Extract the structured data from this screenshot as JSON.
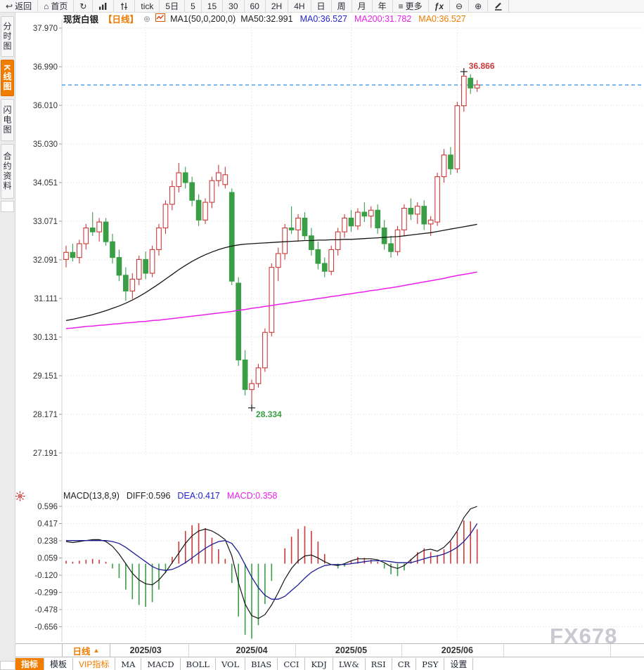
{
  "toolbar": {
    "items": [
      {
        "name": "back-button",
        "icon": "back-arrow-icon",
        "label": "返回"
      },
      {
        "name": "home-button",
        "icon": "home-icon",
        "label": "首页"
      },
      {
        "name": "refresh-button",
        "icon": "refresh-icon",
        "label": ""
      },
      {
        "name": "bar-chart-button",
        "icon": "bar-chart-icon",
        "label": ""
      },
      {
        "name": "indicator-sliders-button",
        "icon": "indicator-sliders-icon",
        "label": ""
      },
      {
        "name": "period-tick",
        "icon": "",
        "label": "tick"
      },
      {
        "name": "period-5d",
        "icon": "",
        "label": "5日"
      },
      {
        "name": "period-5m",
        "icon": "",
        "label": "5"
      },
      {
        "name": "period-15m",
        "icon": "",
        "label": "15"
      },
      {
        "name": "period-30m",
        "icon": "",
        "label": "30"
      },
      {
        "name": "period-60m",
        "icon": "",
        "label": "60"
      },
      {
        "name": "period-2h",
        "icon": "",
        "label": "2H"
      },
      {
        "name": "period-4h",
        "icon": "",
        "label": "4H"
      },
      {
        "name": "period-day",
        "icon": "",
        "label": "日"
      },
      {
        "name": "period-week",
        "icon": "",
        "label": "周"
      },
      {
        "name": "period-month",
        "icon": "",
        "label": "月"
      },
      {
        "name": "period-year",
        "icon": "",
        "label": "年"
      },
      {
        "name": "more-button",
        "icon": "more-icon",
        "label": "更多"
      },
      {
        "name": "fx-button",
        "icon": "fx-icon",
        "label": ""
      },
      {
        "name": "zoom-out-button",
        "icon": "zoom-out-icon",
        "label": ""
      },
      {
        "name": "zoom-in-button",
        "icon": "zoom-in-icon",
        "label": ""
      },
      {
        "name": "draw-button",
        "icon": "pencil-icon",
        "label": ""
      }
    ]
  },
  "sidebar": {
    "tabs": [
      {
        "label": "分时图",
        "active": false
      },
      {
        "label": "K线图",
        "active": true
      },
      {
        "label": "闪电图",
        "active": false
      },
      {
        "label": "合约资料",
        "active": false
      }
    ]
  },
  "title": {
    "instrument": "现货白银",
    "period_tag": "【日线】",
    "add_icon": "⊕",
    "ma_settings": "MA1(50,0,200,0)",
    "ma_values": [
      {
        "label": "MA50:32.991",
        "color": "#222222"
      },
      {
        "label": "MA0:36.527",
        "color": "#2323cc"
      },
      {
        "label": "MA200:31.782",
        "color": "#e822e8"
      },
      {
        "label": "MA0:36.527",
        "color": "#f07c00"
      }
    ]
  },
  "macd_header": {
    "values": [
      {
        "label": "MACD(13,8,9)",
        "color": "#222222"
      },
      {
        "label": "DIFF:0.596",
        "color": "#222222"
      },
      {
        "label": "DEA:0.417",
        "color": "#2323cc"
      },
      {
        "label": "MACD:0.358",
        "color": "#e822e8"
      }
    ]
  },
  "xaxis": {
    "period_label": "日线",
    "arrow": "▲"
  },
  "bottom_tabs": [
    {
      "label": "指标",
      "active": true,
      "accent": false,
      "mono": false
    },
    {
      "label": "模板",
      "active": false,
      "accent": false,
      "mono": false
    },
    {
      "label": "VIP指标",
      "active": false,
      "accent": true,
      "mono": false
    },
    {
      "label": "MA",
      "active": false,
      "accent": false,
      "mono": true
    },
    {
      "label": "MACD",
      "active": false,
      "accent": false,
      "mono": true
    },
    {
      "label": "BOLL",
      "active": false,
      "accent": false,
      "mono": true
    },
    {
      "label": "VOL",
      "active": false,
      "accent": false,
      "mono": true
    },
    {
      "label": "BIAS",
      "active": false,
      "accent": false,
      "mono": true
    },
    {
      "label": "CCI",
      "active": false,
      "accent": false,
      "mono": true
    },
    {
      "label": "KDJ",
      "active": false,
      "accent": false,
      "mono": true
    },
    {
      "label": "LW&",
      "active": false,
      "accent": false,
      "mono": true
    },
    {
      "label": "RSI",
      "active": false,
      "accent": false,
      "mono": true
    },
    {
      "label": "CR",
      "active": false,
      "accent": false,
      "mono": true
    },
    {
      "label": "PSY",
      "active": false,
      "accent": false,
      "mono": true
    },
    {
      "label": "设置",
      "active": false,
      "accent": false,
      "mono": false
    }
  ],
  "watermark": "FX678",
  "chart_data": {
    "type": "candlestick+macd",
    "title": "现货白银 日线",
    "colors": {
      "up": "#cb3a3a",
      "down": "#3a9e46",
      "ma50": "#151515",
      "ma200": "#ea1fea",
      "diff": "#151515",
      "dea": "#1d1d96",
      "price_line": "#2f8fe8",
      "accent": "#f07c00"
    },
    "main": {
      "ylim": [
        26.3,
        38.2
      ],
      "ticks": [
        "37.970",
        "36.990",
        "36.010",
        "35.030",
        "34.051",
        "33.071",
        "32.091",
        "31.111",
        "30.131",
        "29.151",
        "28.171",
        "27.191"
      ],
      "current_price": 36.527,
      "months": [
        {
          "label": "2025/03",
          "index": 12
        },
        {
          "label": "2025/04",
          "index": 28
        },
        {
          "label": "2025/05",
          "index": 43
        },
        {
          "label": "2025/06",
          "index": 59
        }
      ],
      "annotations": {
        "high": {
          "label": "36.866",
          "price": 36.866,
          "index": 60
        },
        "low": {
          "label": "28.334",
          "price": 28.334,
          "index": 28
        }
      },
      "candles": [
        [
          32.1,
          32.45,
          31.9,
          32.28
        ],
        [
          32.28,
          32.5,
          32.05,
          32.15
        ],
        [
          32.15,
          32.6,
          32.0,
          32.5
        ],
        [
          32.5,
          33.0,
          32.35,
          32.9
        ],
        [
          32.9,
          33.3,
          32.7,
          32.8
        ],
        [
          32.8,
          33.15,
          32.55,
          33.05
        ],
        [
          33.05,
          33.15,
          32.45,
          32.55
        ],
        [
          32.55,
          32.75,
          32.0,
          32.15
        ],
        [
          32.15,
          32.35,
          31.55,
          31.7
        ],
        [
          31.7,
          31.9,
          31.05,
          31.3
        ],
        [
          31.3,
          31.75,
          31.1,
          31.6
        ],
        [
          31.6,
          32.2,
          31.45,
          32.1
        ],
        [
          32.1,
          32.3,
          31.6,
          31.75
        ],
        [
          31.75,
          32.45,
          31.65,
          32.35
        ],
        [
          32.35,
          33.0,
          32.2,
          32.9
        ],
        [
          32.9,
          33.6,
          32.75,
          33.5
        ],
        [
          33.5,
          34.1,
          33.35,
          33.95
        ],
        [
          33.95,
          34.55,
          33.8,
          34.3
        ],
        [
          34.3,
          34.45,
          33.9,
          34.05
        ],
        [
          34.05,
          34.2,
          33.45,
          33.6
        ],
        [
          33.6,
          33.75,
          32.95,
          33.1
        ],
        [
          33.1,
          33.65,
          33.0,
          33.55
        ],
        [
          33.55,
          34.2,
          33.4,
          34.1
        ],
        [
          34.1,
          34.5,
          33.95,
          34.3
        ],
        [
          34.0,
          34.45,
          33.9,
          34.25
        ],
        [
          33.8,
          33.9,
          31.45,
          31.55
        ],
        [
          31.5,
          31.65,
          29.4,
          29.55
        ],
        [
          29.55,
          29.8,
          28.65,
          28.8
        ],
        [
          28.8,
          29.05,
          28.334,
          28.95
        ],
        [
          28.95,
          29.45,
          28.85,
          29.35
        ],
        [
          29.35,
          30.35,
          29.25,
          30.25
        ],
        [
          30.25,
          32.0,
          30.15,
          31.9
        ],
        [
          31.9,
          32.4,
          31.55,
          32.25
        ],
        [
          32.25,
          33.0,
          32.1,
          32.9
        ],
        [
          32.9,
          33.45,
          32.75,
          32.85
        ],
        [
          32.85,
          33.25,
          32.55,
          33.15
        ],
        [
          33.15,
          33.3,
          32.6,
          32.7
        ],
        [
          32.7,
          32.9,
          32.2,
          32.35
        ],
        [
          32.35,
          32.55,
          31.85,
          32.0
        ],
        [
          32.0,
          32.15,
          31.65,
          31.8
        ],
        [
          31.8,
          32.45,
          31.7,
          32.35
        ],
        [
          32.35,
          32.9,
          32.2,
          32.8
        ],
        [
          32.8,
          33.25,
          32.65,
          33.15
        ],
        [
          33.15,
          33.35,
          32.8,
          32.95
        ],
        [
          32.95,
          33.4,
          32.85,
          33.3
        ],
        [
          33.3,
          33.55,
          33.05,
          33.2
        ],
        [
          33.2,
          33.45,
          32.9,
          33.35
        ],
        [
          33.35,
          33.5,
          32.75,
          32.9
        ],
        [
          32.9,
          33.1,
          32.35,
          32.5
        ],
        [
          32.5,
          32.7,
          32.15,
          32.3
        ],
        [
          32.3,
          32.95,
          32.2,
          32.85
        ],
        [
          32.85,
          33.5,
          32.7,
          33.4
        ],
        [
          33.4,
          33.65,
          33.1,
          33.25
        ],
        [
          33.25,
          33.55,
          33.0,
          33.45
        ],
        [
          33.45,
          33.6,
          32.85,
          33.0
        ],
        [
          33.0,
          33.2,
          32.7,
          33.1
        ],
        [
          33.05,
          34.3,
          32.95,
          34.2
        ],
        [
          34.2,
          34.9,
          34.05,
          34.75
        ],
        [
          34.75,
          34.95,
          34.25,
          34.4
        ],
        [
          34.4,
          36.1,
          34.3,
          36.0
        ],
        [
          36.0,
          36.866,
          35.85,
          36.75
        ],
        [
          36.7,
          36.8,
          36.3,
          36.45
        ],
        [
          36.45,
          36.65,
          36.35,
          36.527
        ]
      ],
      "ma50": [
        30.55,
        30.58,
        30.62,
        30.66,
        30.7,
        30.75,
        30.8,
        30.86,
        30.92,
        30.99,
        31.07,
        31.16,
        31.26,
        31.37,
        31.48,
        31.6,
        31.72,
        31.84,
        31.95,
        32.05,
        32.14,
        32.22,
        32.29,
        32.35,
        32.4,
        32.44,
        32.47,
        32.49,
        32.5,
        32.51,
        32.52,
        32.53,
        32.54,
        32.55,
        32.56,
        32.57,
        32.58,
        32.58,
        32.59,
        32.59,
        32.6,
        32.6,
        32.61,
        32.61,
        32.62,
        32.63,
        32.64,
        32.65,
        32.66,
        32.67,
        32.68,
        32.7,
        32.72,
        32.74,
        32.76,
        32.78,
        32.81,
        32.84,
        32.87,
        32.9,
        32.93,
        32.96,
        32.991
      ],
      "ma200": [
        30.35,
        30.36,
        30.38,
        30.4,
        30.41,
        30.43,
        30.44,
        30.46,
        30.47,
        30.49,
        30.5,
        30.52,
        30.53,
        30.55,
        30.56,
        30.58,
        30.6,
        30.62,
        30.64,
        30.66,
        30.68,
        30.7,
        30.72,
        30.74,
        30.76,
        30.78,
        30.81,
        30.83,
        30.86,
        30.88,
        30.91,
        30.93,
        30.96,
        30.98,
        31.01,
        31.03,
        31.06,
        31.08,
        31.11,
        31.13,
        31.16,
        31.18,
        31.21,
        31.23,
        31.26,
        31.28,
        31.31,
        31.33,
        31.36,
        31.38,
        31.41,
        31.44,
        31.47,
        31.5,
        31.53,
        31.56,
        31.59,
        31.62,
        31.66,
        31.69,
        31.72,
        31.75,
        31.782
      ]
    },
    "macd": {
      "ylim": [
        -0.8,
        0.66
      ],
      "ticks": [
        "0.596",
        "0.417",
        "0.238",
        "0.059",
        "-0.120",
        "-0.299",
        "-0.478",
        "-0.656"
      ],
      "diff": [
        0.23,
        0.22,
        0.23,
        0.24,
        0.25,
        0.25,
        0.23,
        0.18,
        0.1,
        0.0,
        -0.1,
        -0.17,
        -0.21,
        -0.22,
        -0.17,
        -0.09,
        0.01,
        0.11,
        0.21,
        0.29,
        0.34,
        0.36,
        0.34,
        0.3,
        0.25,
        0.08,
        -0.2,
        -0.42,
        -0.54,
        -0.57,
        -0.53,
        -0.43,
        -0.3,
        -0.16,
        -0.05,
        0.03,
        0.08,
        0.09,
        0.06,
        0.02,
        -0.01,
        -0.02,
        0.0,
        0.03,
        0.05,
        0.05,
        0.05,
        0.04,
        0.01,
        -0.03,
        -0.05,
        -0.02,
        0.04,
        0.1,
        0.14,
        0.15,
        0.13,
        0.17,
        0.24,
        0.34,
        0.48,
        0.57,
        0.596
      ],
      "dea": [
        0.24,
        0.24,
        0.24,
        0.24,
        0.24,
        0.24,
        0.24,
        0.23,
        0.21,
        0.17,
        0.12,
        0.07,
        0.02,
        -0.03,
        -0.06,
        -0.07,
        -0.06,
        -0.03,
        0.01,
        0.06,
        0.11,
        0.16,
        0.2,
        0.23,
        0.24,
        0.21,
        0.12,
        -0.01,
        -0.14,
        -0.25,
        -0.33,
        -0.37,
        -0.37,
        -0.34,
        -0.28,
        -0.22,
        -0.15,
        -0.09,
        -0.05,
        -0.02,
        -0.01,
        -0.01,
        -0.01,
        0.0,
        0.01,
        0.02,
        0.03,
        0.03,
        0.03,
        0.02,
        0.01,
        0.01,
        0.01,
        0.03,
        0.05,
        0.07,
        0.08,
        0.1,
        0.13,
        0.17,
        0.23,
        0.31,
        0.417
      ],
      "hist": [
        0.03,
        0.02,
        0.03,
        0.04,
        0.05,
        0.04,
        0.02,
        -0.05,
        -0.15,
        -0.27,
        -0.37,
        -0.43,
        -0.45,
        -0.4,
        -0.27,
        -0.1,
        0.07,
        0.23,
        0.34,
        0.4,
        0.42,
        0.37,
        0.27,
        0.15,
        0.05,
        -0.2,
        -0.55,
        -0.74,
        -0.78,
        -0.64,
        -0.42,
        -0.18,
        0.0,
        0.16,
        0.28,
        0.36,
        0.39,
        0.34,
        0.23,
        0.1,
        0.0,
        -0.05,
        -0.03,
        0.03,
        0.07,
        0.06,
        0.04,
        0.02,
        -0.05,
        -0.11,
        -0.13,
        -0.07,
        0.05,
        0.12,
        0.16,
        0.12,
        0.09,
        0.15,
        0.23,
        0.33,
        0.45,
        0.44,
        0.358
      ]
    }
  }
}
